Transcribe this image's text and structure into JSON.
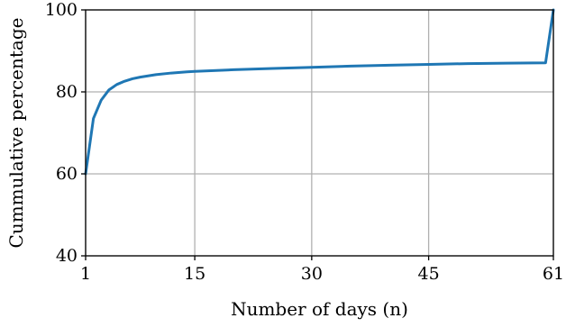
{
  "chart_data": {
    "type": "line",
    "title": "",
    "xlabel": "Number of days (n)",
    "ylabel": "Cummulative percentage",
    "xlim": [
      1,
      61
    ],
    "ylim": [
      40,
      100
    ],
    "xticks": [
      1,
      15,
      30,
      45,
      61
    ],
    "yticks": [
      40,
      60,
      80,
      100
    ],
    "grid": true,
    "legend": "none",
    "series": [
      {
        "color": "#1f77b4",
        "x": [
          1,
          2,
          3,
          4,
          5,
          6,
          7,
          8,
          9,
          10,
          12,
          14,
          15,
          20,
          25,
          30,
          35,
          40,
          45,
          50,
          55,
          60,
          61
        ],
        "y": [
          60,
          73.5,
          78,
          80.5,
          81.8,
          82.6,
          83.2,
          83.6,
          83.9,
          84.2,
          84.6,
          84.9,
          85.0,
          85.4,
          85.7,
          86.0,
          86.3,
          86.5,
          86.7,
          86.9,
          87.0,
          87.1,
          100
        ]
      }
    ]
  }
}
